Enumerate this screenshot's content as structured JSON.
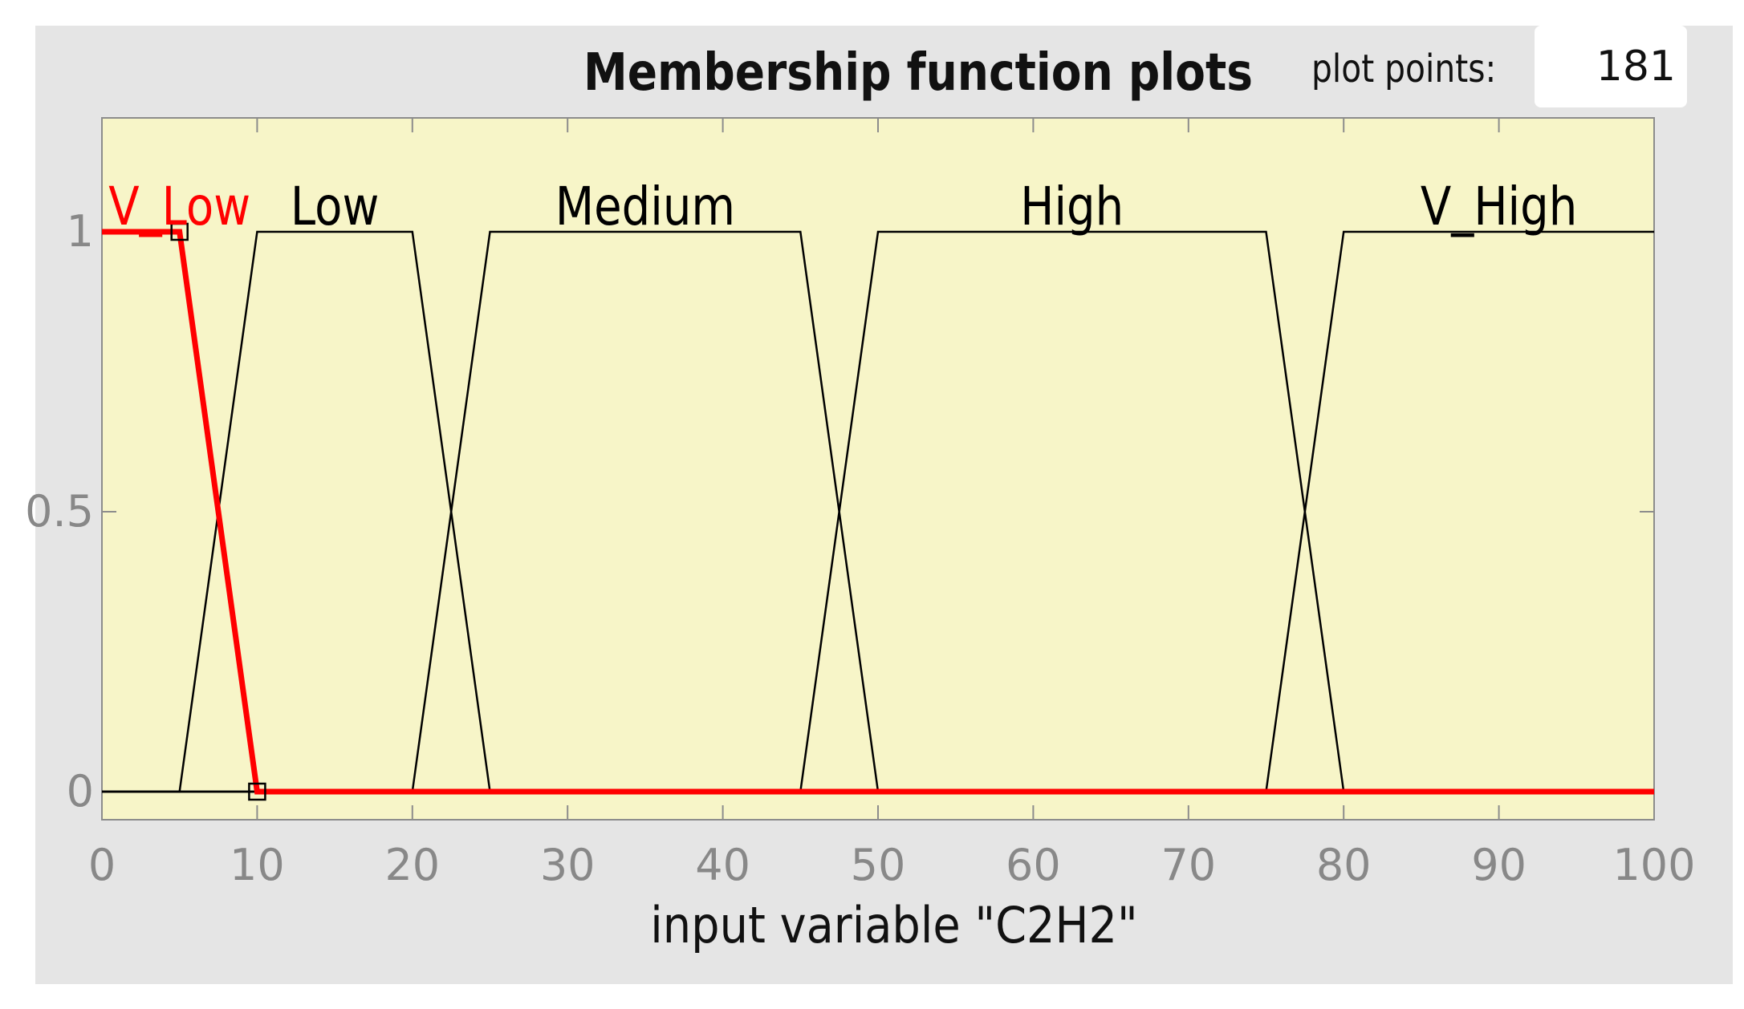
{
  "header": {
    "title": "Membership function plots",
    "plot_points_label": "plot points:",
    "plot_points_value": "181"
  },
  "chart_data": {
    "type": "line",
    "xlabel": "input variable \"C2H2\"",
    "ylabel": "",
    "xlim": [
      0,
      100
    ],
    "ylim": [
      0,
      1.2
    ],
    "xticks": [
      "0",
      "10",
      "20",
      "30",
      "40",
      "50",
      "60",
      "70",
      "80",
      "90",
      "100"
    ],
    "yticks": [
      "0",
      "0.5",
      "1"
    ],
    "grid": false,
    "series": [
      {
        "name": "V_Low",
        "points": [
          [
            0,
            1
          ],
          [
            5,
            1
          ],
          [
            10,
            0
          ],
          [
            100,
            0
          ]
        ],
        "selected": true
      },
      {
        "name": "Low",
        "points": [
          [
            0,
            0
          ],
          [
            5,
            0
          ],
          [
            10,
            1
          ],
          [
            20,
            1
          ],
          [
            25,
            0
          ],
          [
            100,
            0
          ]
        ],
        "selected": false
      },
      {
        "name": "Medium",
        "points": [
          [
            0,
            0
          ],
          [
            20,
            0
          ],
          [
            25,
            1
          ],
          [
            45,
            1
          ],
          [
            50,
            0
          ],
          [
            100,
            0
          ]
        ],
        "selected": false
      },
      {
        "name": "High",
        "points": [
          [
            0,
            0
          ],
          [
            45,
            0
          ],
          [
            50,
            1
          ],
          [
            75,
            1
          ],
          [
            80,
            0
          ],
          [
            100,
            0
          ]
        ],
        "selected": false
      },
      {
        "name": "V_High",
        "points": [
          [
            0,
            0
          ],
          [
            75,
            0
          ],
          [
            80,
            1
          ],
          [
            100,
            1
          ]
        ],
        "selected": false
      }
    ],
    "label_x": [
      5,
      15,
      35,
      62.5,
      90
    ]
  },
  "colors": {
    "plot_background": "#f7f5c8",
    "panel_background": "#e5e5e5",
    "selected": "#ff0000",
    "unselected": "#000000",
    "tick_label": "#888888"
  }
}
